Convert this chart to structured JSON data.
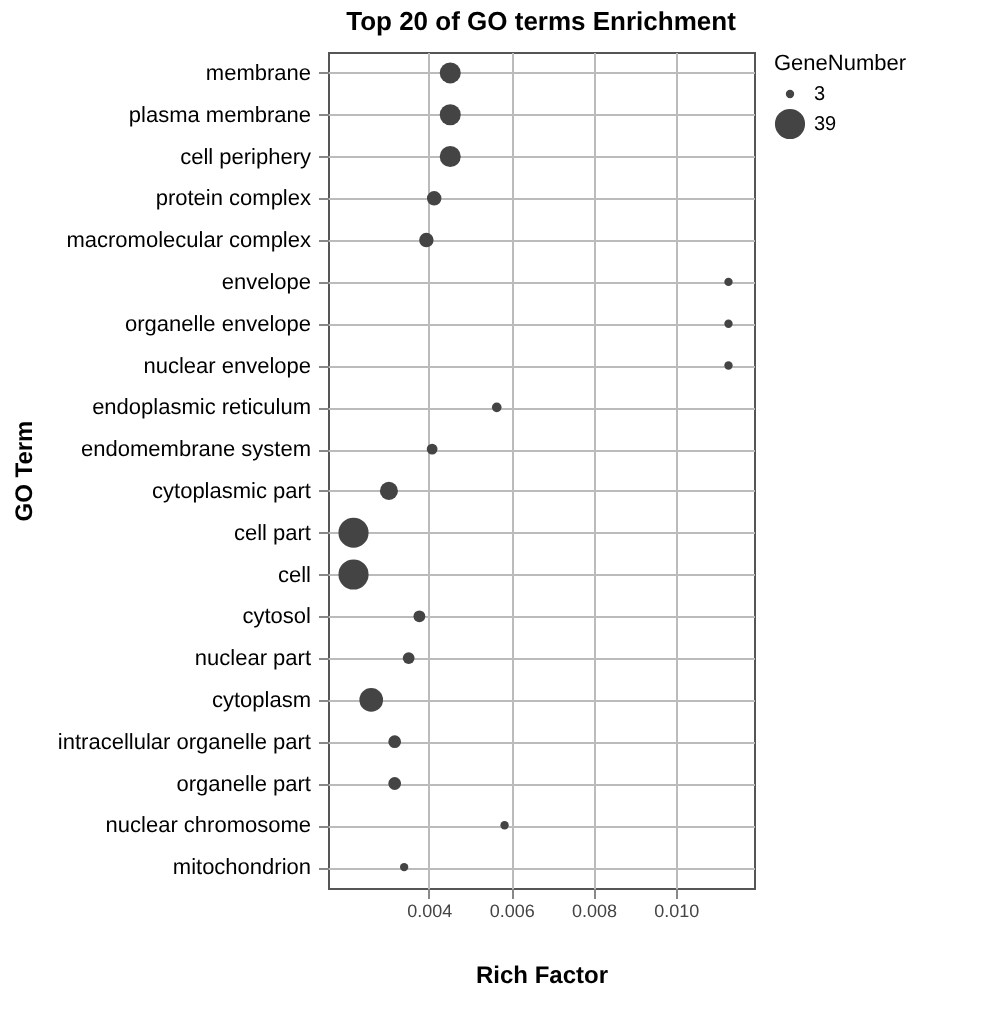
{
  "chart_data": {
    "type": "bubble",
    "title": "Top 20 of GO terms Enrichment",
    "xlabel": "Rich Factor",
    "ylabel": "GO Term",
    "legend_title": "GeneNumber",
    "categories": [
      "membrane",
      "plasma membrane",
      "cell periphery",
      "protein complex",
      "macromolecular complex",
      "envelope",
      "organelle envelope",
      "nuclear envelope",
      "endoplasmic reticulum",
      "endomembrane system",
      "cytoplasmic part",
      "cell part",
      "cell",
      "cytosol",
      "nuclear part",
      "cytoplasm",
      "intracellular organelle part",
      "organelle part",
      "nuclear chromosome",
      "mitochondrion"
    ],
    "series": [
      {
        "color": "#444444",
        "values": [
          0.00452,
          0.00452,
          0.00452,
          0.00413,
          0.00394,
          0.01128,
          0.01128,
          0.01128,
          0.00565,
          0.00408,
          0.00303,
          0.00217,
          0.00217,
          0.00377,
          0.00351,
          0.0026,
          0.00317,
          0.00317,
          0.00584,
          0.0034
        ],
        "sizes": [
          19,
          19,
          19,
          9,
          9,
          3,
          3,
          3,
          4,
          5,
          14,
          39,
          39,
          6,
          6,
          24,
          7,
          7,
          3,
          3
        ]
      }
    ],
    "size_legend": [
      3,
      39
    ],
    "xlim": [
      0.00155,
      0.0119
    ],
    "xticks": [
      0.004,
      0.006,
      0.008,
      {
        "value": 0.01,
        "label": "0.010"
      }
    ],
    "orientation": "horizontal",
    "grid": true
  }
}
